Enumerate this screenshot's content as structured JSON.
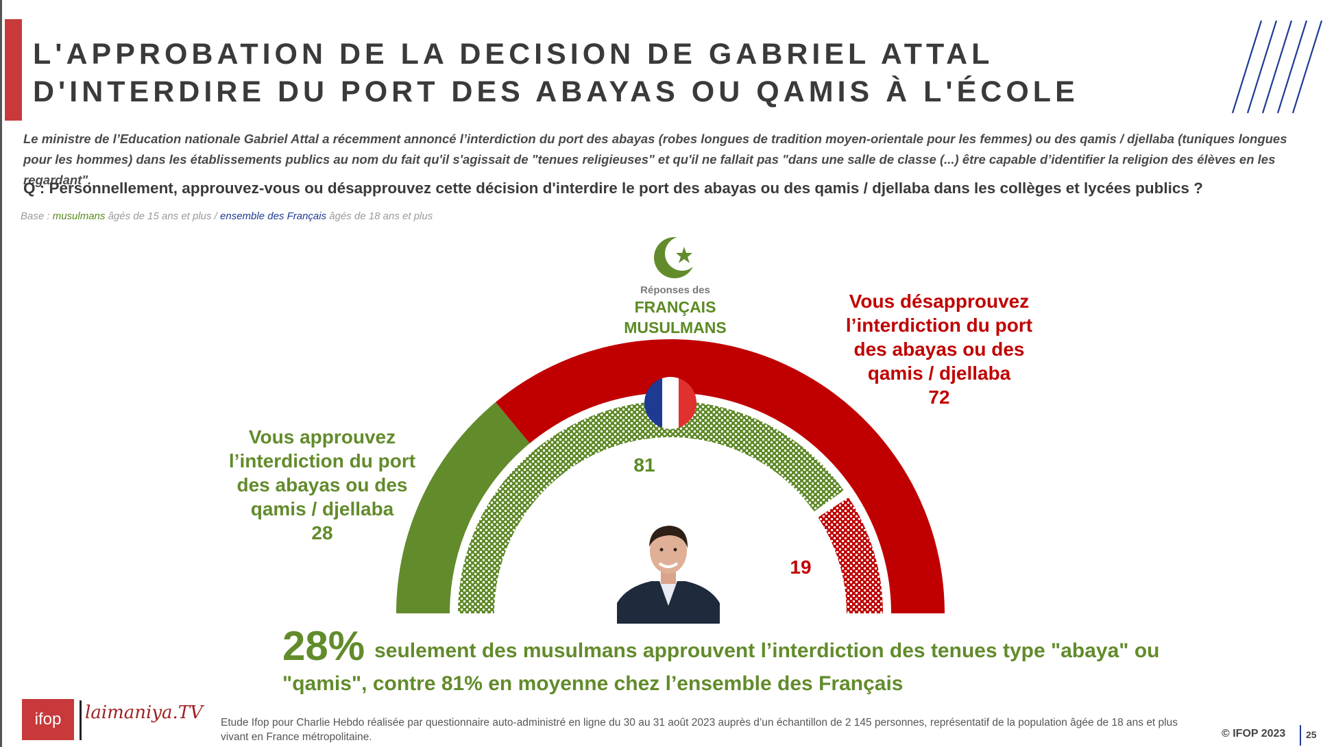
{
  "title": "L'APPROBATION DE LA DECISION DE GABRIEL ATTAL D'INTERDIRE DU PORT DES ABAYAS OU QAMIS À L'ÉCOLE",
  "intro": "Le ministre de l’Education nationale Gabriel Attal a récemment annoncé l’interdiction du port des abayas (robes longues de tradition moyen-orientale pour les femmes) ou des qamis / djellaba (tuniques longues pour les hommes) dans les établissements publics au nom du fait qu'il s'agissait de \"tenues religieuses\" et qu'il ne fallait pas \"dans une salle de classe (...) être capable d’identifier la religion des élèves en les regardant\".",
  "question": "Q : Personnellement, approuvez-vous ou désapprouvez cette décision d'interdire le port des abayas ou des qamis / djellaba dans les collèges et lycées publics ?",
  "base": {
    "prefix": "Base : ",
    "muslims": "musulmans",
    "muslims_suffix": " âgés de 15 ans et plus / ",
    "french": "ensemble des Français",
    "french_suffix": " âgés de 18 ans et plus"
  },
  "respondents": {
    "small": "Réponses des",
    "big_line1": "FRANÇAIS",
    "big_line2": "MUSULMANS"
  },
  "labels": {
    "approve_lines": [
      "Vous approuvez",
      "l’interdiction du port",
      "des abayas ou des",
      "qamis / djellaba"
    ],
    "approve_value": "28",
    "disapprove_lines": [
      "Vous désapprouvez",
      "l’interdiction du port",
      "des abayas ou des",
      "qamis / djellaba"
    ],
    "disapprove_value": "72",
    "all_approve_value": "81",
    "all_disapprove_value": "19"
  },
  "headline": {
    "big": "28%",
    "rest": "seulement des musulmans approuvent l’interdiction des tenues type \"abaya\" ou",
    "line2": "\"qamis\", contre 81% en moyenne chez l’ensemble des Français"
  },
  "footer": {
    "logo_ifop": "ifop",
    "logo_laimaniya": "laimaniya.TV",
    "footnote": "Etude Ifop pour Charlie Hebdo réalisée par questionnaire auto-administré en ligne du 30 au 31 août 2023 auprès d’un échantillon de 2 145 personnes, représentatif de la population âgée de 18 ans et plus vivant en France métropolitaine.",
    "copyright": "© IFOP 2023",
    "page": "25"
  },
  "colors": {
    "approve": "#628b2b",
    "disapprove": "#c00000",
    "accent": "#c8393b",
    "hatch_blue": "#1f3a93"
  },
  "chart_data": {
    "type": "pie",
    "style": "half-donut",
    "series": [
      {
        "name": "musulmans",
        "categories": [
          "Vous approuvez",
          "Vous désapprouvez"
        ],
        "values": [
          28,
          72
        ]
      },
      {
        "name": "ensemble des Français",
        "categories": [
          "Vous approuvez",
          "Vous désapprouvez"
        ],
        "values": [
          81,
          19
        ]
      }
    ]
  }
}
